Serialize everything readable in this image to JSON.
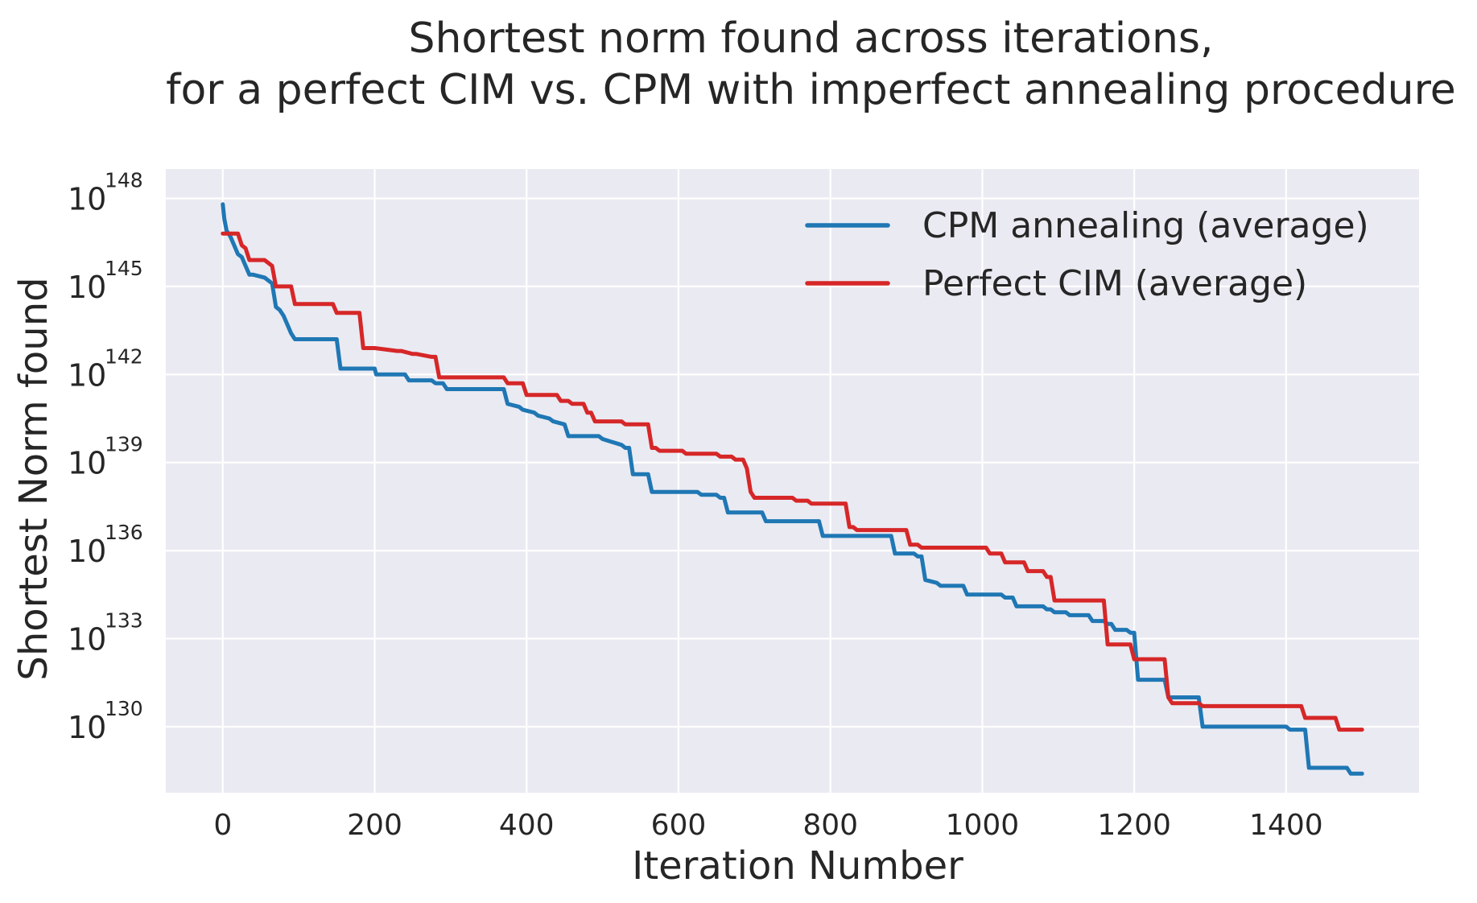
{
  "title": [
    "Shortest norm found across iterations,",
    "for a perfect CIM vs. CPM with imperfect annealing procedure"
  ],
  "xlabel": "Iteration Number",
  "ylabel": "Shortest Norm found",
  "chart_data": {
    "type": "line",
    "title": "Shortest norm found across iterations, for a perfect CIM vs. CPM with imperfect annealing procedure",
    "xlabel": "Iteration Number",
    "ylabel": "Shortest Norm found",
    "yscale": "log",
    "xlim": [
      -75,
      1575
    ],
    "ylim_exp": [
      127.75,
      149.0
    ],
    "xticks": [
      0,
      200,
      400,
      600,
      800,
      1000,
      1200,
      1400
    ],
    "xtick_labels": [
      "0",
      "200",
      "400",
      "600",
      "800",
      "1000",
      "1200",
      "1400"
    ],
    "yticks_exp": [
      130,
      133,
      136,
      139,
      142,
      145,
      148
    ],
    "ytick_base": "10",
    "ytick_exponents": [
      "130",
      "133",
      "136",
      "139",
      "142",
      "145",
      "148"
    ],
    "grid": true,
    "legend_position": "top-right",
    "series": [
      {
        "name": "CPM annealing (average)",
        "color": "#1f77b4",
        "x": [
          0,
          2,
          5,
          10,
          15,
          20,
          25,
          30,
          35,
          40,
          55,
          65,
          70,
          75,
          80,
          85,
          90,
          95,
          100,
          150,
          155,
          200,
          202,
          240,
          245,
          275,
          280,
          290,
          295,
          310,
          315,
          370,
          375,
          390,
          395,
          410,
          415,
          430,
          435,
          450,
          455,
          495,
          500,
          525,
          530,
          535,
          540,
          560,
          565,
          625,
          630,
          650,
          655,
          660,
          665,
          710,
          715,
          785,
          790,
          880,
          885,
          910,
          915,
          920,
          925,
          940,
          945,
          975,
          980,
          1025,
          1030,
          1040,
          1045,
          1080,
          1085,
          1090,
          1095,
          1110,
          1115,
          1140,
          1145,
          1160,
          1165,
          1170,
          1175,
          1190,
          1195,
          1200,
          1205,
          1240,
          1245,
          1285,
          1290,
          1400,
          1405,
          1425,
          1430,
          1480,
          1485,
          1500
        ],
        "y_log10": [
          147.8,
          147.3,
          146.9,
          146.7,
          146.4,
          146.1,
          146.0,
          145.7,
          145.4,
          145.4,
          145.3,
          145.1,
          144.3,
          144.2,
          144.0,
          143.7,
          143.4,
          143.2,
          143.2,
          143.2,
          142.2,
          142.2,
          142.0,
          142.0,
          141.8,
          141.8,
          141.7,
          141.7,
          141.5,
          141.5,
          141.5,
          141.5,
          141.0,
          140.9,
          140.8,
          140.7,
          140.6,
          140.5,
          140.4,
          140.3,
          139.9,
          139.9,
          139.8,
          139.6,
          139.5,
          139.5,
          138.6,
          138.6,
          138.0,
          138.0,
          137.9,
          137.9,
          137.8,
          137.8,
          137.3,
          137.3,
          137.0,
          137.0,
          136.5,
          136.5,
          135.9,
          135.9,
          135.8,
          135.8,
          135.0,
          134.9,
          134.8,
          134.8,
          134.5,
          134.5,
          134.4,
          134.4,
          134.1,
          134.1,
          134.0,
          134.0,
          133.9,
          133.9,
          133.8,
          133.8,
          133.6,
          133.6,
          133.5,
          133.5,
          133.3,
          133.3,
          133.2,
          133.2,
          131.6,
          131.6,
          131.0,
          131.0,
          130.0,
          130.0,
          129.9,
          129.9,
          128.6,
          128.6,
          128.4,
          128.4
        ]
      },
      {
        "name": "Perfect CIM (average)",
        "color": "#d62728",
        "x": [
          0,
          20,
          25,
          30,
          35,
          55,
          65,
          70,
          90,
          95,
          145,
          150,
          180,
          185,
          200,
          230,
          235,
          250,
          255,
          275,
          280,
          285,
          290,
          370,
          375,
          395,
          400,
          440,
          445,
          455,
          460,
          475,
          480,
          485,
          490,
          525,
          530,
          560,
          565,
          570,
          575,
          605,
          610,
          650,
          655,
          670,
          675,
          685,
          690,
          695,
          700,
          750,
          755,
          770,
          775,
          820,
          825,
          830,
          835,
          900,
          905,
          915,
          920,
          1005,
          1010,
          1025,
          1030,
          1055,
          1060,
          1080,
          1085,
          1090,
          1095,
          1120,
          1125,
          1160,
          1165,
          1170,
          1175,
          1195,
          1200,
          1240,
          1245,
          1250,
          1255,
          1285,
          1290,
          1420,
          1425,
          1465,
          1470,
          1500
        ],
        "y_log10": [
          146.8,
          146.8,
          146.4,
          146.3,
          145.9,
          145.9,
          145.7,
          145.0,
          145.0,
          144.4,
          144.4,
          144.1,
          144.1,
          142.9,
          142.9,
          142.8,
          142.8,
          142.7,
          142.7,
          142.6,
          142.6,
          141.9,
          141.9,
          141.9,
          141.7,
          141.7,
          141.3,
          141.3,
          141.1,
          141.1,
          141.0,
          141.0,
          140.7,
          140.7,
          140.4,
          140.4,
          140.3,
          140.3,
          139.5,
          139.5,
          139.4,
          139.4,
          139.3,
          139.3,
          139.2,
          139.2,
          139.1,
          139.1,
          138.8,
          138.0,
          137.8,
          137.8,
          137.7,
          137.7,
          137.6,
          137.6,
          136.8,
          136.8,
          136.7,
          136.7,
          136.2,
          136.2,
          136.1,
          136.1,
          135.9,
          135.9,
          135.6,
          135.6,
          135.3,
          135.3,
          135.1,
          135.1,
          134.3,
          134.3,
          134.3,
          134.3,
          132.8,
          132.8,
          132.8,
          132.8,
          132.3,
          132.3,
          131.0,
          130.8,
          130.8,
          130.8,
          130.7,
          130.7,
          130.3,
          130.3,
          129.9,
          129.9
        ]
      }
    ]
  }
}
